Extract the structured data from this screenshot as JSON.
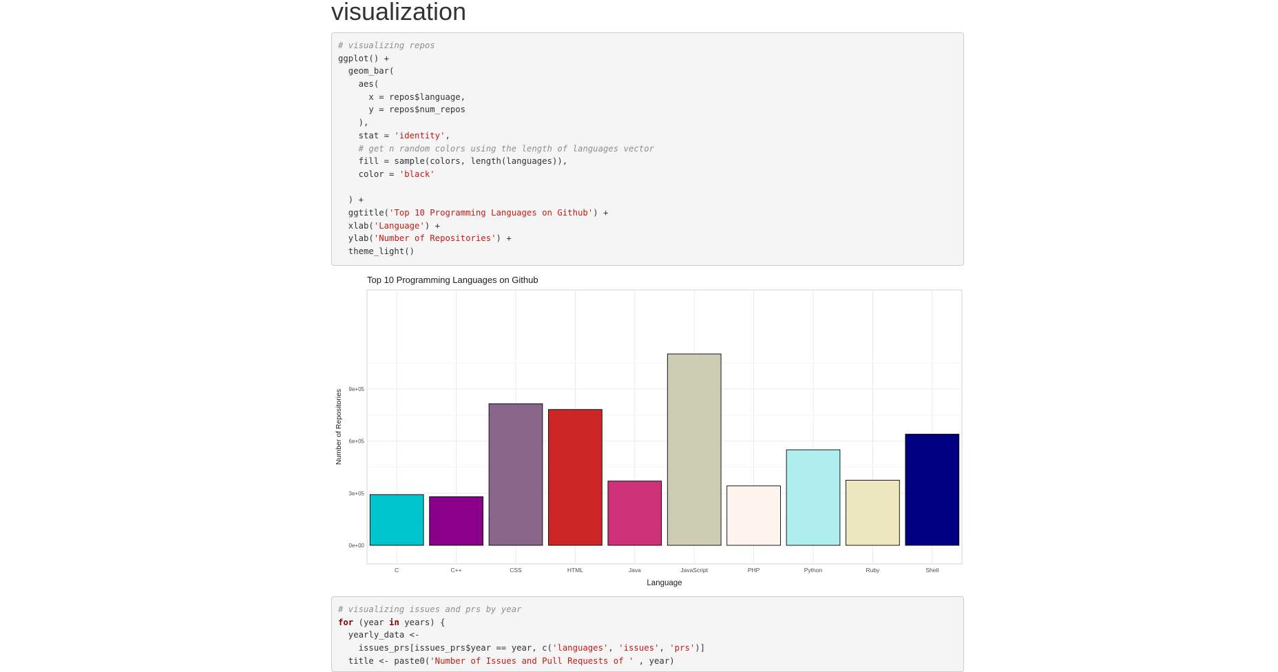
{
  "page": {
    "heading": "visualization"
  },
  "code_blocks": [
    {
      "lines": [
        [
          {
            "t": "comment",
            "s": "# visualizing repos"
          }
        ],
        [
          {
            "t": "plain",
            "s": "ggplot() +"
          }
        ],
        [
          {
            "t": "plain",
            "s": "  geom_bar("
          }
        ],
        [
          {
            "t": "plain",
            "s": "    aes("
          }
        ],
        [
          {
            "t": "plain",
            "s": "      x = repos$language,"
          }
        ],
        [
          {
            "t": "plain",
            "s": "      y = repos$num_repos"
          }
        ],
        [
          {
            "t": "plain",
            "s": "    ),"
          }
        ],
        [
          {
            "t": "plain",
            "s": "    stat = "
          },
          {
            "t": "string",
            "s": "'identity'"
          },
          {
            "t": "plain",
            "s": ","
          }
        ],
        [
          {
            "t": "comment",
            "s": "    # get n random colors using the length of languages vector"
          }
        ],
        [
          {
            "t": "plain",
            "s": "    fill = sample(colors, length(languages)),"
          }
        ],
        [
          {
            "t": "plain",
            "s": "    color = "
          },
          {
            "t": "string",
            "s": "'black'"
          }
        ],
        [
          {
            "t": "plain",
            "s": ""
          }
        ],
        [
          {
            "t": "plain",
            "s": "  ) +"
          }
        ],
        [
          {
            "t": "plain",
            "s": "  ggtitle("
          },
          {
            "t": "string",
            "s": "'Top 10 Programming Languages on Github'"
          },
          {
            "t": "plain",
            "s": ") +"
          }
        ],
        [
          {
            "t": "plain",
            "s": "  xlab("
          },
          {
            "t": "string",
            "s": "'Language'"
          },
          {
            "t": "plain",
            "s": ") +"
          }
        ],
        [
          {
            "t": "plain",
            "s": "  ylab("
          },
          {
            "t": "string",
            "s": "'Number of Repositories'"
          },
          {
            "t": "plain",
            "s": ") +"
          }
        ],
        [
          {
            "t": "plain",
            "s": "  theme_light()"
          }
        ]
      ]
    },
    {
      "lines": [
        [
          {
            "t": "comment",
            "s": "# visualizing issues and prs by year"
          }
        ],
        [
          {
            "t": "keyword",
            "s": "for"
          },
          {
            "t": "plain",
            "s": " (year "
          },
          {
            "t": "keyword",
            "s": "in"
          },
          {
            "t": "plain",
            "s": " years) {"
          }
        ],
        [
          {
            "t": "plain",
            "s": "  yearly_data <-"
          }
        ],
        [
          {
            "t": "plain",
            "s": "    issues_prs[issues_prs$year == year, c("
          },
          {
            "t": "string",
            "s": "'languages'"
          },
          {
            "t": "plain",
            "s": ", "
          },
          {
            "t": "string",
            "s": "'issues'"
          },
          {
            "t": "plain",
            "s": ", "
          },
          {
            "t": "string",
            "s": "'prs'"
          },
          {
            "t": "plain",
            "s": ")]"
          }
        ],
        [
          {
            "t": "plain",
            "s": "  title <- paste0("
          },
          {
            "t": "string",
            "s": "'Number of Issues and Pull Requests of '"
          },
          {
            "t": "plain",
            "s": " , year)"
          }
        ]
      ]
    }
  ],
  "chart_data": {
    "type": "bar",
    "title": "Top 10 Programming Languages on Github",
    "xlabel": "Language",
    "ylabel": "Number of Repositories",
    "categories": [
      "C",
      "C++",
      "CSS",
      "HTML",
      "Java",
      "JavaScript",
      "PHP",
      "Python",
      "Ruby",
      "Shell"
    ],
    "values": [
      292000,
      280000,
      815000,
      782000,
      370000,
      1102000,
      342000,
      550000,
      375000,
      640000
    ],
    "bar_colors": [
      "#00C5CD",
      "#8B008B",
      "#8B668B",
      "#CD2626",
      "#CD3278",
      "#CDCDB4",
      "#FFF5EE",
      "#AEEEEE",
      "#EEE8C0",
      "#000080"
    ],
    "bar_outline": "#000000",
    "yticks": [
      0,
      300000,
      600000,
      900000
    ],
    "ytick_labels": [
      "0e+00",
      "3e+05",
      "6e+05",
      "9e+05"
    ],
    "ylim": [
      0,
      1150000
    ],
    "grid": true,
    "theme": "light"
  }
}
